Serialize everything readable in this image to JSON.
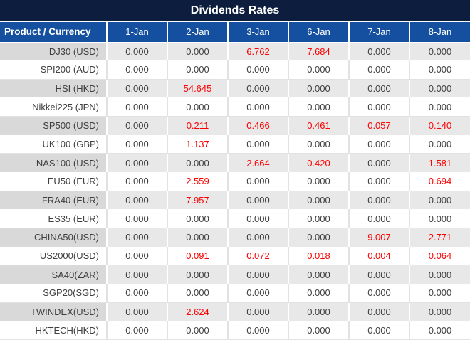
{
  "title": "Dividends Rates",
  "colors": {
    "title_bg": "#0c1d3e",
    "header_bg": "#14509f",
    "alt_row_label_bg": "#d9d9d9",
    "alt_row_bg": "#e8e8e8",
    "value_color": "#3f3f3f",
    "highlight_value_color": "#ff0000"
  },
  "table": {
    "header": [
      "Product / Currency",
      "1-Jan",
      "2-Jan",
      "3-Jan",
      "6-Jan",
      "7-Jan",
      "8-Jan"
    ],
    "rows": [
      {
        "label": "DJ30 (USD)",
        "values": [
          "0.000",
          "0.000",
          "6.762",
          "7.684",
          "0.000",
          "0.000"
        ],
        "red": [
          false,
          false,
          true,
          true,
          false,
          false
        ]
      },
      {
        "label": "SPI200 (AUD)",
        "values": [
          "0.000",
          "0.000",
          "0.000",
          "0.000",
          "0.000",
          "0.000"
        ],
        "red": [
          false,
          false,
          false,
          false,
          false,
          false
        ]
      },
      {
        "label": "HSI (HKD)",
        "values": [
          "0.000",
          "54.645",
          "0.000",
          "0.000",
          "0.000",
          "0.000"
        ],
        "red": [
          false,
          true,
          false,
          false,
          false,
          false
        ]
      },
      {
        "label": "Nikkei225 (JPN)",
        "values": [
          "0.000",
          "0.000",
          "0.000",
          "0.000",
          "0.000",
          "0.000"
        ],
        "red": [
          false,
          false,
          false,
          false,
          false,
          false
        ]
      },
      {
        "label": "SP500 (USD)",
        "values": [
          "0.000",
          "0.211",
          "0.466",
          "0.461",
          "0.057",
          "0.140"
        ],
        "red": [
          false,
          true,
          true,
          true,
          true,
          true
        ]
      },
      {
        "label": "UK100 (GBP)",
        "values": [
          "0.000",
          "1.137",
          "0.000",
          "0.000",
          "0.000",
          "0.000"
        ],
        "red": [
          false,
          true,
          false,
          false,
          false,
          false
        ]
      },
      {
        "label": "NAS100 (USD)",
        "values": [
          "0.000",
          "0.000",
          "2.664",
          "0.420",
          "0.000",
          "1.581"
        ],
        "red": [
          false,
          false,
          true,
          true,
          false,
          true
        ]
      },
      {
        "label": "EU50 (EUR)",
        "values": [
          "0.000",
          "2.559",
          "0.000",
          "0.000",
          "0.000",
          "0.694"
        ],
        "red": [
          false,
          true,
          false,
          false,
          false,
          true
        ]
      },
      {
        "label": "FRA40 (EUR)",
        "values": [
          "0.000",
          "7.957",
          "0.000",
          "0.000",
          "0.000",
          "0.000"
        ],
        "red": [
          false,
          true,
          false,
          false,
          false,
          false
        ]
      },
      {
        "label": "ES35 (EUR)",
        "values": [
          "0.000",
          "0.000",
          "0.000",
          "0.000",
          "0.000",
          "0.000"
        ],
        "red": [
          false,
          false,
          false,
          false,
          false,
          false
        ]
      },
      {
        "label": "CHINA50(USD)",
        "values": [
          "0.000",
          "0.000",
          "0.000",
          "0.000",
          "9.007",
          "2.771"
        ],
        "red": [
          false,
          false,
          false,
          false,
          true,
          true
        ]
      },
      {
        "label": "US2000(USD)",
        "values": [
          "0.000",
          "0.091",
          "0.072",
          "0.018",
          "0.004",
          "0.064"
        ],
        "red": [
          false,
          true,
          true,
          true,
          true,
          true
        ]
      },
      {
        "label": "SA40(ZAR)",
        "values": [
          "0.000",
          "0.000",
          "0.000",
          "0.000",
          "0.000",
          "0.000"
        ],
        "red": [
          false,
          false,
          false,
          false,
          false,
          false
        ]
      },
      {
        "label": "SGP20(SGD)",
        "values": [
          "0.000",
          "0.000",
          "0.000",
          "0.000",
          "0.000",
          "0.000"
        ],
        "red": [
          false,
          false,
          false,
          false,
          false,
          false
        ]
      },
      {
        "label": "TWINDEX(USD)",
        "values": [
          "0.000",
          "2.624",
          "0.000",
          "0.000",
          "0.000",
          "0.000"
        ],
        "red": [
          false,
          true,
          false,
          false,
          false,
          false
        ]
      },
      {
        "label": "HKTECH(HKD)",
        "values": [
          "0.000",
          "0.000",
          "0.000",
          "0.000",
          "0.000",
          "0.000"
        ],
        "red": [
          false,
          false,
          false,
          false,
          false,
          false
        ]
      }
    ]
  }
}
